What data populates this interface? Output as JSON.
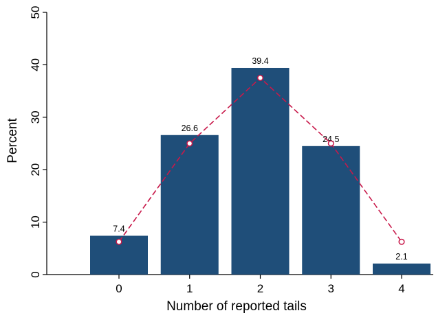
{
  "chart_data": {
    "type": "bar",
    "title": "",
    "xlabel": "Number of reported tails",
    "ylabel": "Percent",
    "categories": [
      "0",
      "1",
      "2",
      "3",
      "4"
    ],
    "x": [
      0,
      1,
      2,
      3,
      4
    ],
    "series": [
      {
        "type": "bar",
        "values": [
          7.4,
          26.6,
          39.4,
          24.5,
          2.1
        ],
        "color": "#1f4e79"
      },
      {
        "type": "line",
        "values": [
          6.25,
          25,
          37.5,
          25,
          6.25
        ],
        "color": "#c8194a",
        "style": "dashed",
        "marker": "hollow-circle"
      }
    ],
    "data_labels": [
      "7.4",
      "26.6",
      "39.4",
      "24.5",
      "2.1"
    ],
    "ylim": [
      0,
      50
    ],
    "yticks": [
      0,
      10,
      20,
      30,
      40,
      50
    ],
    "ytick_labels": [
      "0",
      "10",
      "20",
      "30",
      "40",
      "50"
    ],
    "xtick_labels": [
      "0",
      "1",
      "2",
      "3",
      "4"
    ],
    "grid": false,
    "legend": "none"
  }
}
